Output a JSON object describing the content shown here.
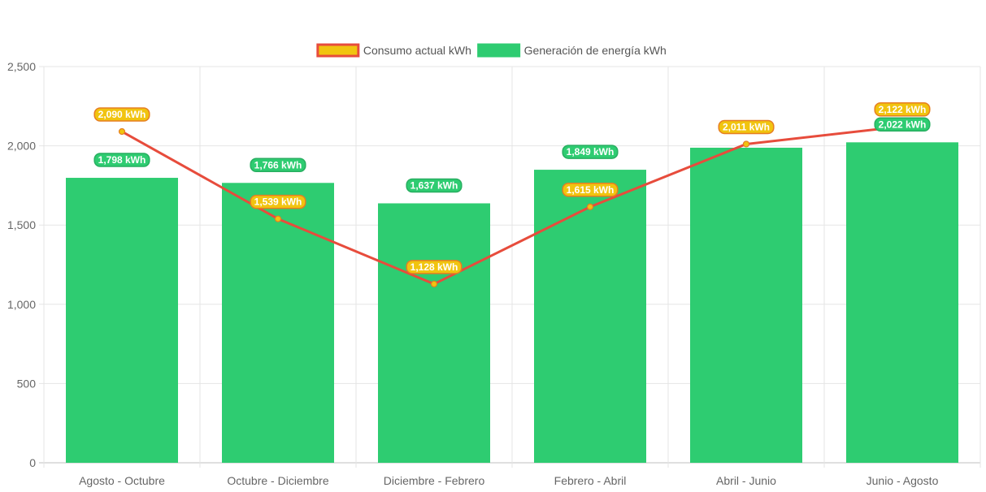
{
  "chart_data": {
    "type": "bar",
    "categories": [
      "Agosto - Octubre",
      "Octubre - Diciembre",
      "Diciembre - Febrero",
      "Febrero - Abril",
      "Abril - Junio",
      "Junio - Agosto"
    ],
    "series": [
      {
        "name": "Generación de energía kWh",
        "type": "bar",
        "color": "#2ecc71",
        "values": [
          1798,
          1766,
          1637,
          1849,
          1988,
          2022
        ],
        "data_labels": [
          "1,798 kWh",
          "1,766 kWh",
          "1,637 kWh",
          "1,849 kWh",
          "",
          "2,022 kWh"
        ]
      },
      {
        "name": "Consumo actual kWh",
        "type": "line",
        "color": "#e74c3c",
        "point_color": "#f1c40f",
        "values": [
          2090,
          1539,
          1128,
          1615,
          2011,
          2122
        ],
        "data_labels": [
          "2,090 kWh",
          "1,539 kWh",
          "1,128 kWh",
          "1,615 kWh",
          "2,011 kWh",
          "2,122 kWh"
        ]
      }
    ],
    "y_ticks": [
      "0",
      "500",
      "1,000",
      "1,500",
      "2,000",
      "2,500"
    ],
    "ylim": [
      0,
      2500
    ],
    "grid": true,
    "legend_position": "top",
    "legend": [
      {
        "label": "Consumo actual kWh",
        "fill": "#f1c40f",
        "stroke": "#e74c3c"
      },
      {
        "label": "Generación de energía kWh",
        "fill": "#2ecc71",
        "stroke": "#2ecc71"
      }
    ]
  }
}
